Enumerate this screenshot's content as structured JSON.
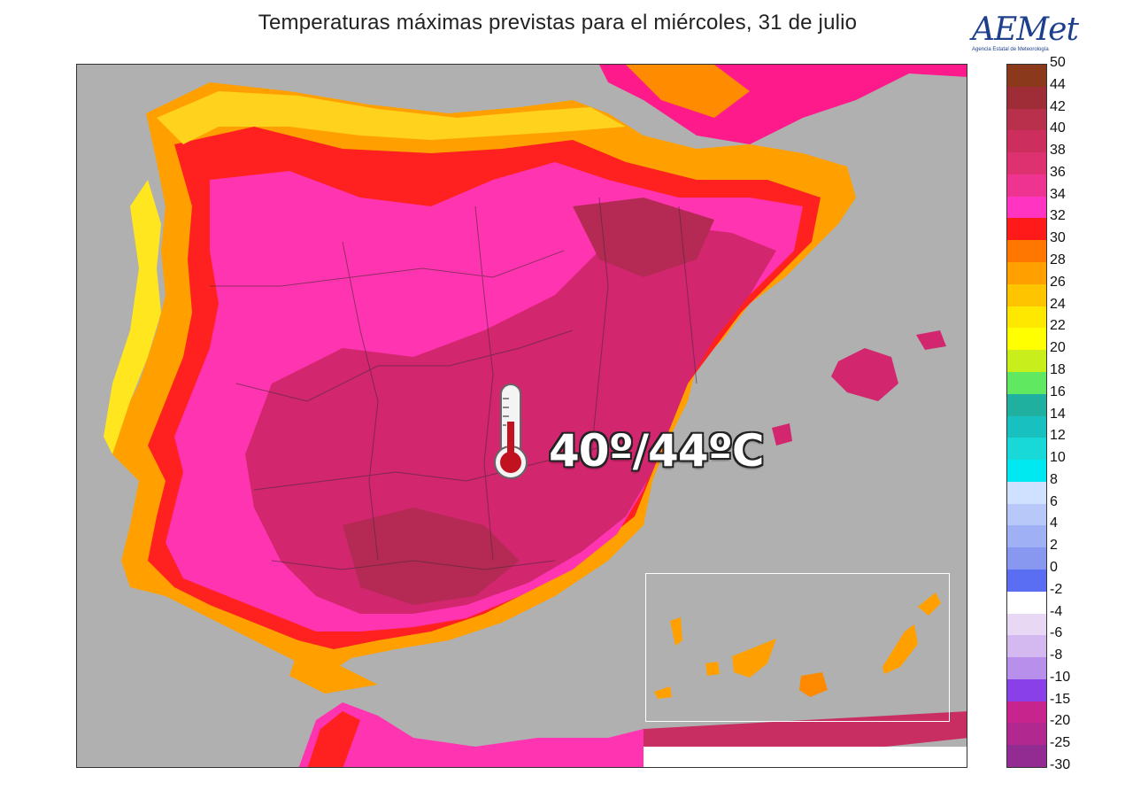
{
  "header": {
    "title": "Temperaturas máximas previstas para el miércoles, 31 de julio"
  },
  "logo": {
    "mark": "AEMet",
    "agency": "Agencia Estatal de Meteorología"
  },
  "map": {
    "annotation": "40º/44ºC",
    "thermometer_icon": "thermometer-icon",
    "sea_color": "#b0b0b0",
    "inset_region": "canary-islands"
  },
  "legend": {
    "labels": [
      "50",
      "44",
      "42",
      "40",
      "38",
      "36",
      "34",
      "32",
      "30",
      "28",
      "26",
      "24",
      "22",
      "20",
      "18",
      "16",
      "14",
      "12",
      "10",
      "8",
      "6",
      "4",
      "2",
      "0",
      "-2",
      "-4",
      "-6",
      "-8",
      "-10",
      "-15",
      "-20",
      "-25",
      "-30"
    ],
    "colors": [
      "#8a3a1a",
      "#9e2d38",
      "#b8304c",
      "#cc2f5e",
      "#de3270",
      "#ee3490",
      "#ff34c0",
      "#ff1a1a",
      "#ff7700",
      "#ffa000",
      "#ffc400",
      "#ffe800",
      "#ffff00",
      "#c8ee1c",
      "#5fe860",
      "#20b0a0",
      "#18c0c0",
      "#18d8d8",
      "#00e8f0",
      "#d0e0ff",
      "#b8c8f8",
      "#a0b0f4",
      "#8898f0",
      "#5a6ef4",
      "#ffffff",
      "#e8d8f4",
      "#d4b8f0",
      "#b890ec",
      "#8a40e8",
      "#c8248e",
      "#b02890",
      "#922c92",
      "#7a3496"
    ]
  }
}
